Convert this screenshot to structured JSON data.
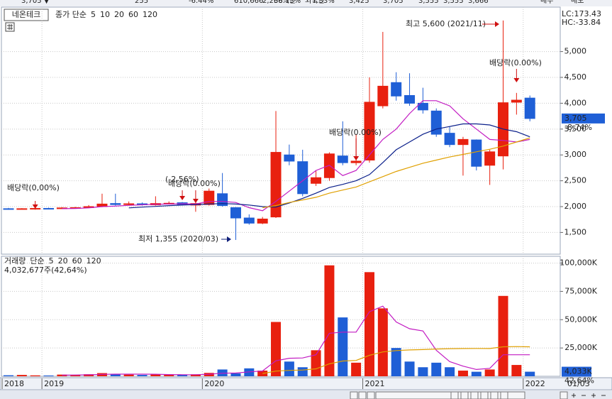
{
  "header": {
    "cells": [
      "3,705 ▼",
      "255",
      "-6.44%",
      "610,666",
      "38.13%",
      "1.33%",
      "2,266백만",
      "외국인",
      "3,425",
      "3,705",
      "3,555",
      "3,555",
      "3,666",
      "매수",
      "매도"
    ]
  },
  "chart_data": [
    {
      "type": "candlestick",
      "title": "네온테크",
      "ma_label": "종가 단순",
      "up_color": "#e8200f",
      "down_color": "#1f5fd6",
      "categories": [
        null,
        null,
        null,
        null,
        null,
        null,
        null,
        null,
        null,
        null,
        null,
        null,
        null,
        null,
        null,
        null,
        null,
        null,
        null,
        null,
        null,
        null,
        null,
        null,
        null,
        null,
        null,
        null,
        null,
        null,
        null,
        null,
        null,
        null,
        null,
        null,
        null,
        null,
        null,
        null
      ],
      "open": [
        1960,
        1955,
        1960,
        1965,
        1960,
        1975,
        1980,
        2000,
        2060,
        2040,
        2055,
        2035,
        2060,
        2075,
        2030,
        2040,
        2250,
        1980,
        1780,
        1680,
        1800,
        3000,
        2870,
        2450,
        2560,
        2980,
        2850,
        2900,
        3950,
        4400,
        4150,
        4000,
        3850,
        3420,
        3200,
        3290,
        2800,
        2980,
        4020,
        4100
      ],
      "high": [
        1975,
        1970,
        1990,
        1980,
        1990,
        1995,
        2030,
        2250,
        2250,
        2100,
        2080,
        2200,
        2100,
        2090,
        2090,
        2350,
        2650,
        1990,
        1850,
        1800,
        3850,
        3200,
        3100,
        2700,
        3050,
        3650,
        3400,
        4500,
        5380,
        4600,
        4580,
        4300,
        3900,
        3550,
        3350,
        3300,
        3100,
        5600,
        4200,
        4150
      ],
      "low": [
        1940,
        1945,
        1940,
        1950,
        1955,
        1965,
        1975,
        1990,
        2020,
        2020,
        2020,
        2020,
        2040,
        2020,
        1900,
        2020,
        2000,
        1355,
        1650,
        1660,
        1780,
        2800,
        2200,
        2400,
        2500,
        2800,
        2800,
        2850,
        3900,
        4050,
        3950,
        3800,
        3350,
        3150,
        2600,
        2700,
        2420,
        2720,
        3780,
        3650
      ],
      "close": [
        1950,
        1960,
        1965,
        1960,
        1975,
        1980,
        2000,
        2050,
        2040,
        2055,
        2035,
        2060,
        2065,
        2040,
        2060,
        2300,
        2020,
        1780,
        1680,
        1760,
        3050,
        2880,
        2250,
        2560,
        3020,
        2850,
        2880,
        4020,
        4330,
        4140,
        4000,
        3870,
        3400,
        3200,
        3300,
        2780,
        3060,
        4010,
        4060,
        3705
      ],
      "series": [
        {
          "name": "5",
          "color": "#c21bc2",
          "values": [
            null,
            null,
            null,
            null,
            1960,
            1965,
            1975,
            2000,
            2010,
            2025,
            2035,
            2045,
            2050,
            2055,
            2050,
            2100,
            2100,
            2080,
            1980,
            1920,
            2100,
            2300,
            2500,
            2700,
            2800,
            2600,
            2700,
            3000,
            3300,
            3500,
            3800,
            4050,
            4050,
            3950,
            3700,
            3500,
            3300,
            3280,
            3250,
            3300
          ]
        },
        {
          "name": "10",
          "color": "#0a1f8a",
          "values": [
            null,
            null,
            null,
            null,
            null,
            null,
            null,
            null,
            null,
            1975,
            1990,
            2005,
            2020,
            2030,
            2040,
            2050,
            2060,
            2050,
            2030,
            2000,
            1990,
            2070,
            2160,
            2260,
            2370,
            2430,
            2500,
            2620,
            2850,
            3100,
            3250,
            3400,
            3500,
            3550,
            3600,
            3600,
            3580,
            3500,
            3450,
            3350
          ]
        },
        {
          "name": "20",
          "color": "#e0a000",
          "values": [
            null,
            null,
            null,
            null,
            null,
            null,
            null,
            null,
            null,
            null,
            null,
            null,
            null,
            null,
            null,
            null,
            null,
            null,
            null,
            1980,
            2020,
            2080,
            2130,
            2180,
            2260,
            2320,
            2380,
            2480,
            2580,
            2680,
            2760,
            2840,
            2900,
            2960,
            3010,
            3060,
            3110,
            3170,
            3250,
            3330
          ]
        }
      ],
      "legend_only": [
        {
          "name": "60",
          "color": "#2a8a2a"
        },
        {
          "name": "120",
          "color": "#888888"
        }
      ],
      "ylim": [
        1080,
        5860
      ],
      "yticks": [
        {
          "value": 1500,
          "label": "1,500"
        },
        {
          "value": 2000,
          "label": "2,000"
        },
        {
          "value": 2500,
          "label": "2,500"
        },
        {
          "value": 3000,
          "label": "3,000"
        },
        {
          "value": 3500,
          "label": "3,500"
        },
        {
          "value": 4000,
          "label": "4,000"
        },
        {
          "value": 4500,
          "label": "4,500"
        },
        {
          "value": 5000,
          "label": "5,000"
        }
      ],
      "xlim": [
        -0.53,
        41.27
      ],
      "xticks": [
        {
          "value": -0.5,
          "label": "2018"
        },
        {
          "value": 2.5,
          "label": "2019"
        },
        {
          "value": 14.5,
          "label": "2020"
        },
        {
          "value": 26.5,
          "label": "2021"
        },
        {
          "value": 38.5,
          "label": "2022"
        }
      ],
      "last_date": "01/03",
      "lc_label": "LC:173.43",
      "hc_label": "HC:-33.84",
      "current_price": 3705,
      "current_price_label": "3,705",
      "current_change": "-8.74%",
      "annotations": [
        {
          "text": "배당락(0,00%)",
          "color": "#000000"
        },
        {
          "text": "(-2.56%)",
          "color": "#000000"
        },
        {
          "text": "배당락(0.00%)",
          "color": "#000000"
        },
        {
          "text": "배당락(0.00%)",
          "color": "#000000"
        },
        {
          "text": "배당락(0.00%)",
          "color": "#000000"
        },
        {
          "text": "최고 5,600 (2021/11)",
          "color": "#d01010"
        },
        {
          "text": "최저 1,355 (2020/03)",
          "color": "#10207a"
        }
      ]
    },
    {
      "type": "bar",
      "title": "거래량",
      "ma_label": "단순",
      "summary": "4,032,677주(42,64%)",
      "values": [
        900,
        1200,
        800,
        700,
        1500,
        1300,
        1800,
        2800,
        2200,
        1500,
        1200,
        1600,
        1400,
        1300,
        1700,
        3000,
        6000,
        2600,
        7000,
        5000,
        48000,
        13000,
        8000,
        23000,
        98000,
        52000,
        12000,
        92000,
        60000,
        25000,
        13000,
        8000,
        12000,
        8000,
        5000,
        4000,
        6000,
        71000,
        10000,
        4033
      ],
      "series": [
        {
          "name": "5",
          "color": "#c21bc2",
          "values": [
            null,
            null,
            null,
            null,
            1000,
            1100,
            1300,
            1700,
            1900,
            1900,
            1900,
            1800,
            1500,
            1400,
            1400,
            1800,
            2700,
            2900,
            3900,
            4700,
            13700,
            15900,
            16200,
            19000,
            38000,
            39000,
            39000,
            57000,
            62000,
            48000,
            42000,
            40000,
            23000,
            13000,
            9000,
            6000,
            7000,
            19000,
            19000,
            19000
          ]
        },
        {
          "name": "20",
          "color": "#e0a000",
          "values": [
            null,
            null,
            null,
            null,
            null,
            null,
            null,
            null,
            null,
            null,
            null,
            null,
            null,
            null,
            null,
            null,
            null,
            null,
            null,
            2400,
            4600,
            5200,
            5500,
            6600,
            11000,
            13500,
            14000,
            18500,
            21500,
            22700,
            23300,
            23600,
            24100,
            24400,
            24500,
            24600,
            24500,
            26000,
            26200,
            26000
          ]
        }
      ],
      "legend_only": [
        {
          "name": "60",
          "color": "#2a8a2a"
        },
        {
          "name": "120",
          "color": "#888888"
        }
      ],
      "ylim": [
        0,
        106000
      ],
      "yticks": [
        {
          "value": 25000,
          "label": "25,000K"
        },
        {
          "value": 50000,
          "label": "50,000K"
        },
        {
          "value": 75000,
          "label": "75,000K"
        },
        {
          "value": 100000,
          "label": "100,000K"
        }
      ],
      "current_volume": 4033,
      "current_volume_label": "4,033K",
      "current_ratio": "42.64%"
    }
  ]
}
